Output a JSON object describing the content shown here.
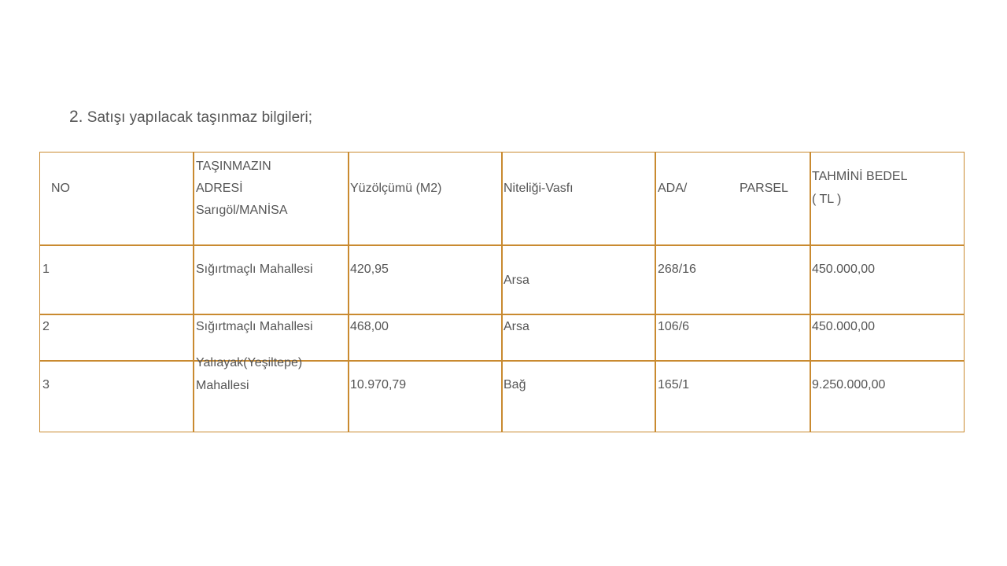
{
  "heading": {
    "number": "2.",
    "text": "Satışı yapılacak taşınmaz bilgileri;"
  },
  "table": {
    "border_color": "#c98a30",
    "headers": {
      "no": "NO",
      "address": [
        "TAŞINMAZIN",
        "ADRESİ",
        "Sarıgöl/MANİSA"
      ],
      "area": "Yüzölçümü (M2)",
      "type": "Niteliği-Vasfı",
      "ada": "ADA/",
      "parsel": "PARSEL",
      "price": [
        "TAHMİNİ BEDEL",
        "( TL )"
      ]
    },
    "rows": [
      {
        "no": "1",
        "address": [
          "Sığırtmaçlı Mahallesi"
        ],
        "area": "420,95",
        "type": "Arsa",
        "ada_parsel": "268/16",
        "price": "450.000,00"
      },
      {
        "no": "2",
        "address": [
          "Sığırtmaçlı Mahallesi"
        ],
        "area": "468,00",
        "type": "Arsa",
        "ada_parsel": "106/6",
        "price": "450.000,00"
      },
      {
        "no": "3",
        "address": [
          "Yalıayak(Yeşiltepe)",
          "Mahallesi"
        ],
        "area": "10.970,79",
        "type": "Bağ",
        "ada_parsel": "165/1",
        "price": "9.250.000,00"
      }
    ]
  }
}
